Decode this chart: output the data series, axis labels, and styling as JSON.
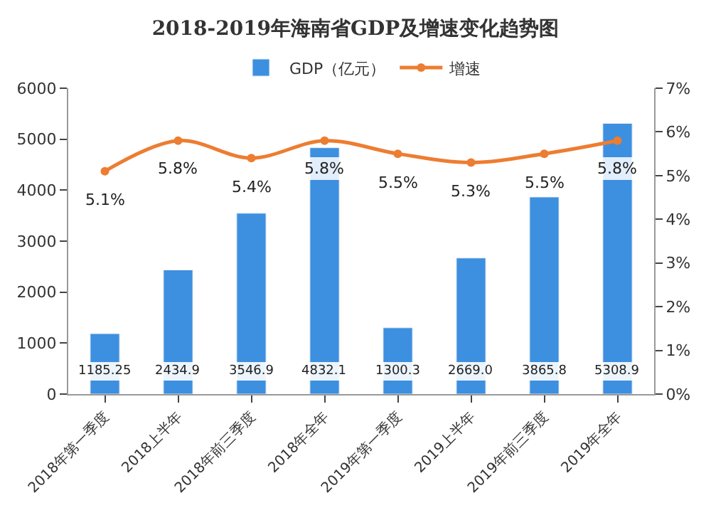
{
  "chart_data": {
    "type": "bar",
    "title": "2018-2019年海南省GDP及增速变化趋势图",
    "categories": [
      "2018年第一季度",
      "2018上半年",
      "2018年前三季度",
      "2018年全年",
      "2019年第一季度",
      "2019上半年",
      "2019年前三季度",
      "2019年全年"
    ],
    "series": [
      {
        "name": "GDP（亿元）",
        "color": "#3d8fe0",
        "values": [
          1185.25,
          2434.9,
          3546.9,
          4832.1,
          1300.3,
          2669.0,
          3865.8,
          5308.9
        ],
        "value_labels": [
          "1185.25",
          "2434.9",
          "3546.9",
          "4832.1",
          "1300.3",
          "2669.0",
          "3865.8",
          "5308.9"
        ]
      },
      {
        "name": "增速",
        "type": "line",
        "axis": "y2",
        "color": "#ed7d31",
        "values": [
          5.1,
          5.8,
          5.4,
          5.8,
          5.5,
          5.3,
          5.5,
          5.8
        ],
        "value_labels": [
          "5.1%",
          "5.8%",
          "5.4%",
          "5.8%",
          "5.5%",
          "5.3%",
          "5.5%",
          "5.8%"
        ]
      }
    ],
    "ylim": [
      0,
      6000
    ],
    "yticks": [
      0,
      1000,
      2000,
      3000,
      4000,
      5000,
      6000
    ],
    "y2lim": [
      0,
      7
    ],
    "y2ticks": [
      {
        "value": 0,
        "label": "0%"
      },
      {
        "value": 1,
        "label": "1%"
      },
      {
        "value": 2,
        "label": "2%"
      },
      {
        "value": 3,
        "label": "3%"
      },
      {
        "value": 4,
        "label": "4%"
      },
      {
        "value": 5,
        "label": "5%"
      },
      {
        "value": 6,
        "label": "6%"
      },
      {
        "value": 7,
        "label": "7%"
      }
    ],
    "marker": "circle",
    "line_style": "solid",
    "legend": "top"
  }
}
